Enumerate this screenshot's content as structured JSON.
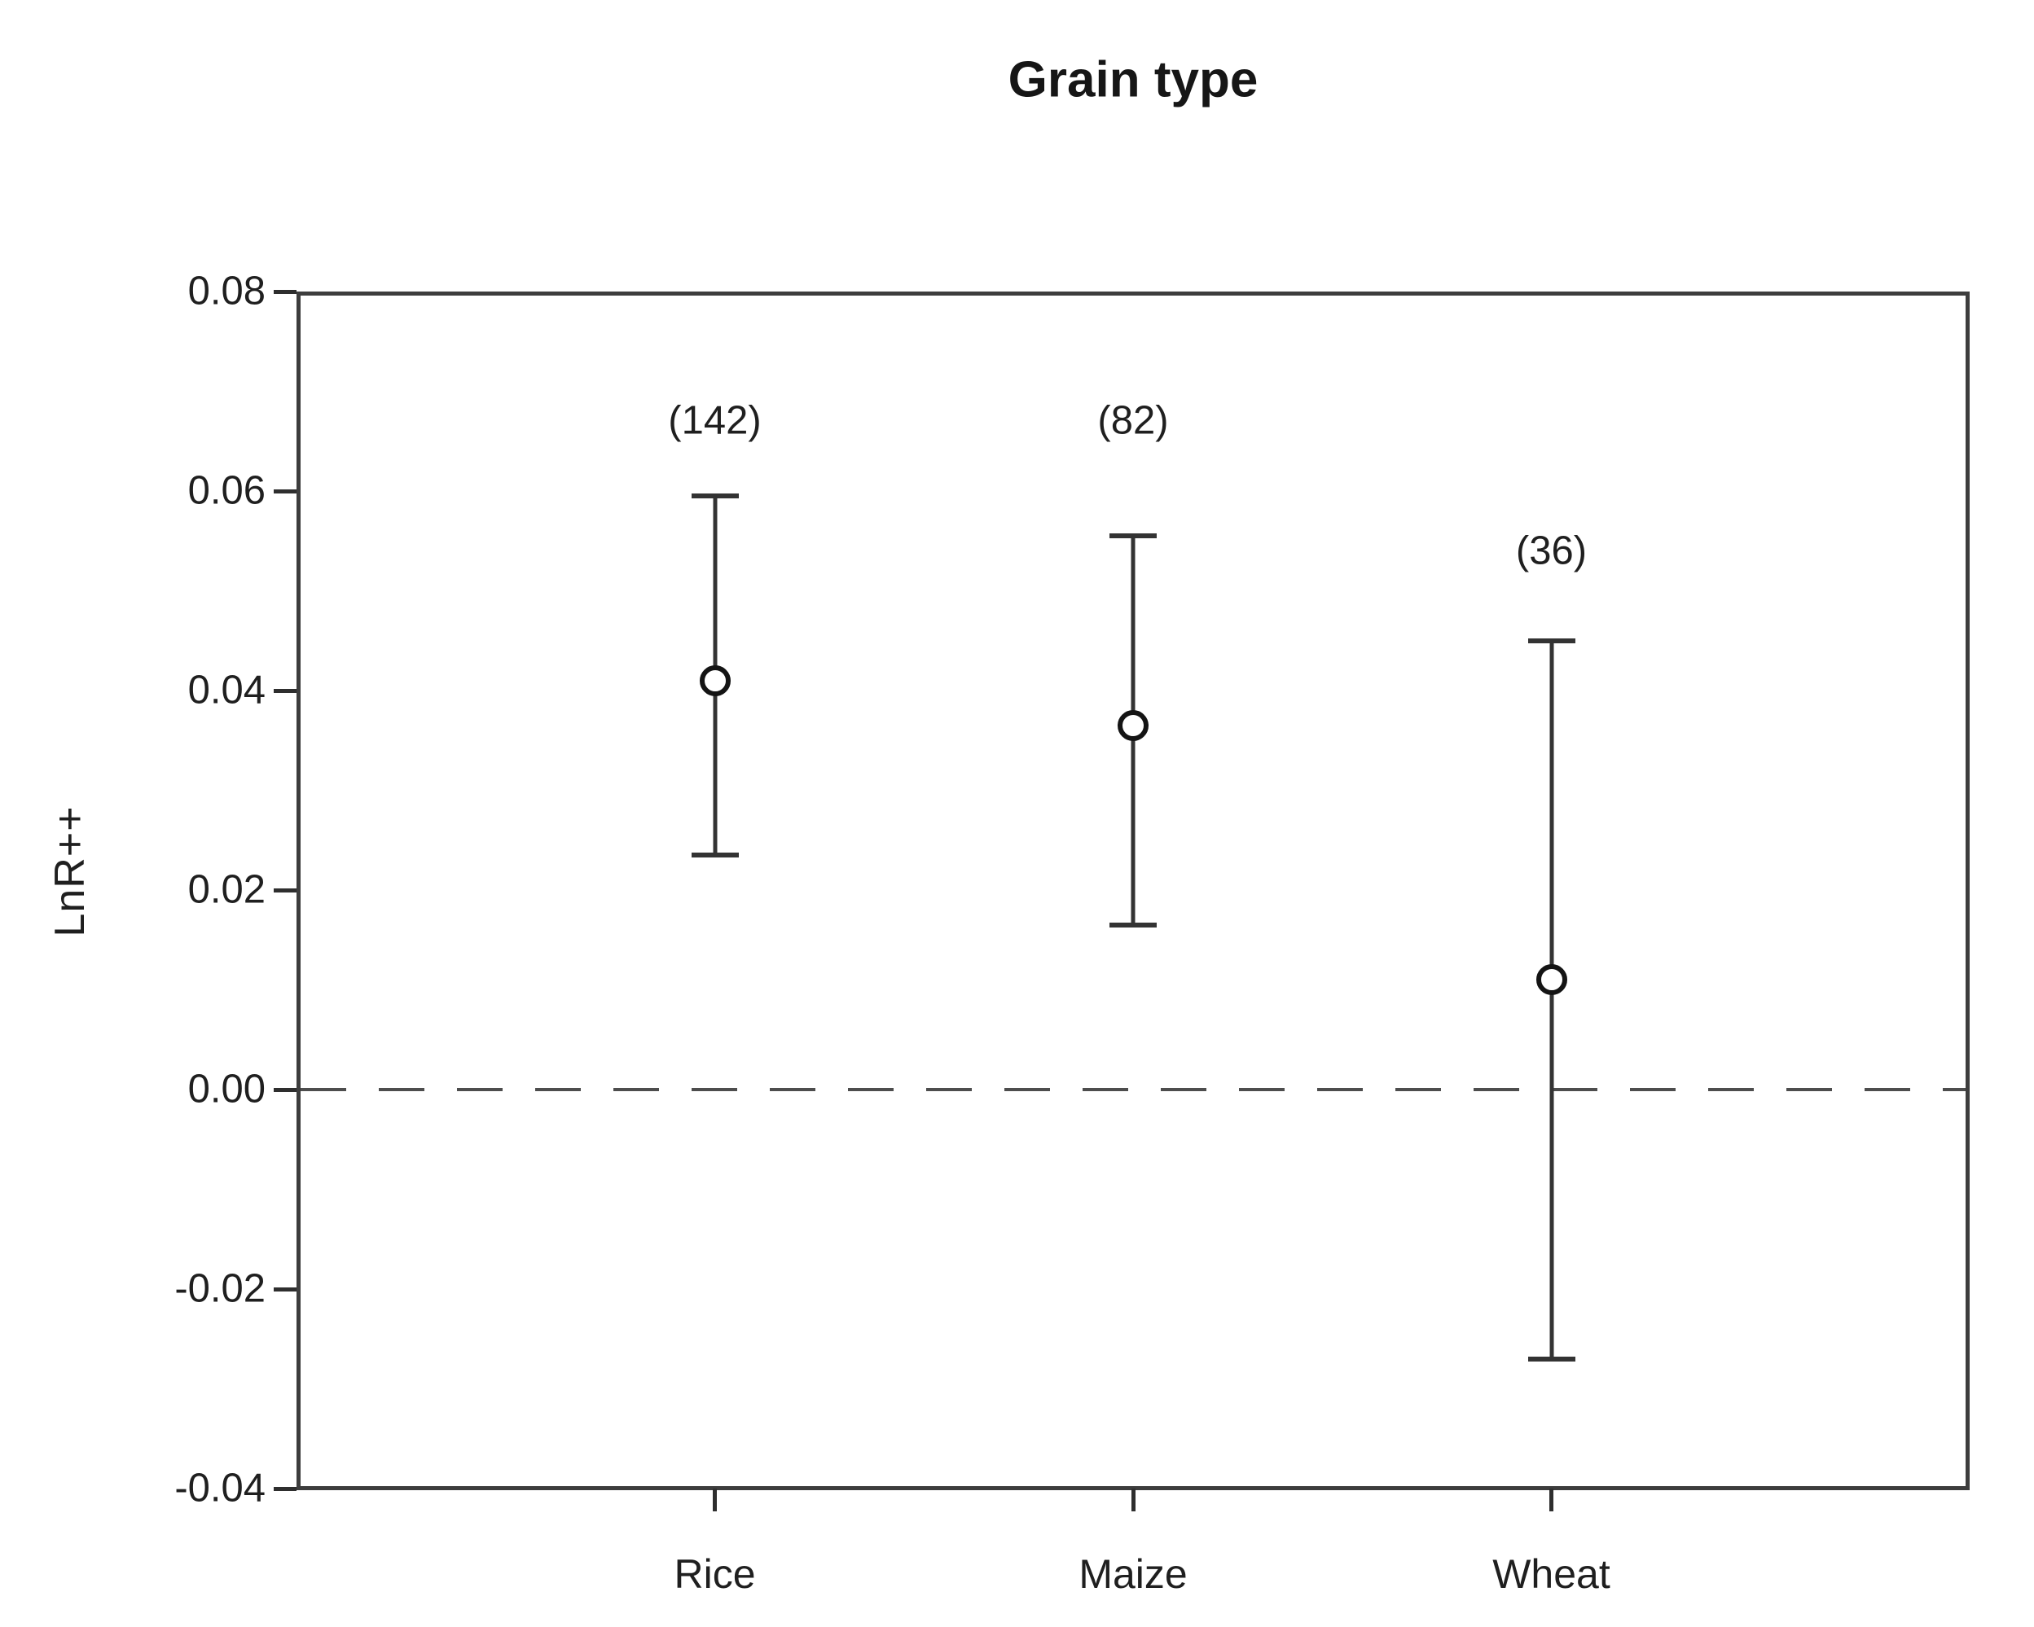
{
  "chart_data": {
    "type": "scatter",
    "subtype": "point-estimate-with-error-bars",
    "title": "Grain type",
    "xlabel": "",
    "ylabel": "LnR++",
    "categories": [
      "Rice",
      "Maize",
      "Wheat"
    ],
    "series": [
      {
        "name": "Rice",
        "n": 142,
        "n_label": "(142)",
        "n_label_value": 0.067,
        "mean": 0.041,
        "ci_low": 0.0235,
        "ci_high": 0.0595
      },
      {
        "name": "Maize",
        "n": 82,
        "n_label": "(82)",
        "n_label_value": 0.067,
        "mean": 0.0365,
        "ci_low": 0.0165,
        "ci_high": 0.0555
      },
      {
        "name": "Wheat",
        "n": 36,
        "n_label": "(36)",
        "n_label_value": 0.054,
        "mean": 0.011,
        "ci_low": -0.027,
        "ci_high": 0.045
      }
    ],
    "ylim": [
      -0.04,
      0.08
    ],
    "yticks": [
      {
        "label": "0.08",
        "value": 0.08
      },
      {
        "label": "0.06",
        "value": 0.06
      },
      {
        "label": "0.04",
        "value": 0.04
      },
      {
        "label": "0.02",
        "value": 0.02
      },
      {
        "label": "0.00",
        "value": 0.0
      },
      {
        "label": "-0.02",
        "value": -0.02
      },
      {
        "label": "-0.04",
        "value": -0.04
      }
    ],
    "zero_line": {
      "value": 0.0,
      "style": "dashed"
    },
    "grid": false,
    "frame": true,
    "legend": null,
    "marker": "open-circle"
  },
  "colors": {
    "background": "#ffffff",
    "frame": "#3d3d3d",
    "error_bar": "#333333",
    "marker_ring": "#141414",
    "marker_fill": "#ffffff",
    "zero_line": "#4d4d4d",
    "text": "#1f1f1f"
  }
}
